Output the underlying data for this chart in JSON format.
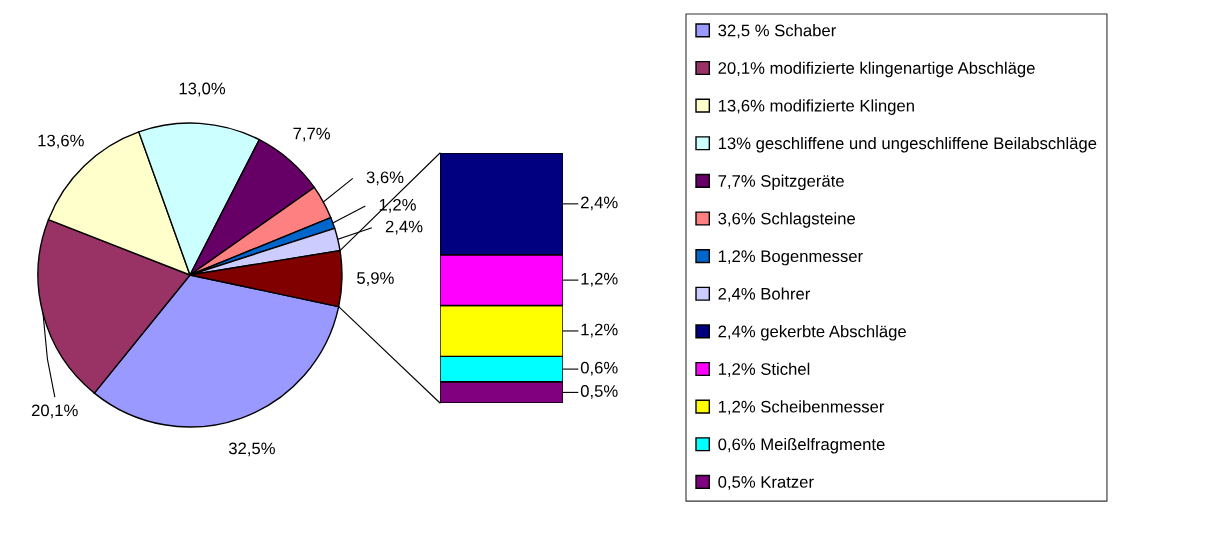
{
  "chart_data": [
    {
      "type": "pie",
      "categories": [
        "32,5 % Schaber",
        "20,1% modifizierte klingenartige Abschläge",
        "13,6% modifizierte Klingen",
        "13% geschliffene und ungeschliffene Beilabschläge",
        "7,7% Spitzgeräte",
        "3,6% Schlagsteine",
        "1,2% Bogenmesser",
        "2,4% Bohrer",
        null
      ],
      "values": [
        32.5,
        20.1,
        13.6,
        13.0,
        7.7,
        3.6,
        1.2,
        2.4,
        5.9
      ],
      "colors": [
        "#9999ff",
        "#993366",
        "#ffffcc",
        "#ccffff",
        "#660066",
        "#ff8080",
        "#0066cc",
        "#ccccff",
        "#800000"
      ],
      "value_labels": [
        "32,5%",
        "20,1%",
        "13,6%",
        "13,0%",
        "7,7%",
        "3,6%",
        "1,2%",
        "2,4%",
        "5,9%"
      ],
      "legend": "right"
    },
    {
      "type": "bar",
      "stacked": true,
      "categories": [
        null
      ],
      "series": [
        {
          "name": "0,5% Kratzer",
          "color": "#800080",
          "values": [
            0.5
          ],
          "value_labels": [
            "0,5%"
          ]
        },
        {
          "name": "0,6% Meißelfragmente",
          "color": "#00ffff",
          "values": [
            0.6
          ],
          "value_labels": [
            "0,6%"
          ]
        },
        {
          "name": "1,2% Scheibenmesser",
          "color": "#ffff00",
          "values": [
            1.2
          ],
          "value_labels": [
            "1,2%"
          ]
        },
        {
          "name": "1,2% Stichel",
          "color": "#ff00ff",
          "values": [
            1.2
          ],
          "value_labels": [
            "1,2%"
          ]
        },
        {
          "name": "2,4% gekerbte Abschläge",
          "color": "#000080",
          "values": [
            2.4
          ],
          "value_labels": [
            "2,4%"
          ]
        }
      ],
      "legend": "right"
    }
  ]
}
